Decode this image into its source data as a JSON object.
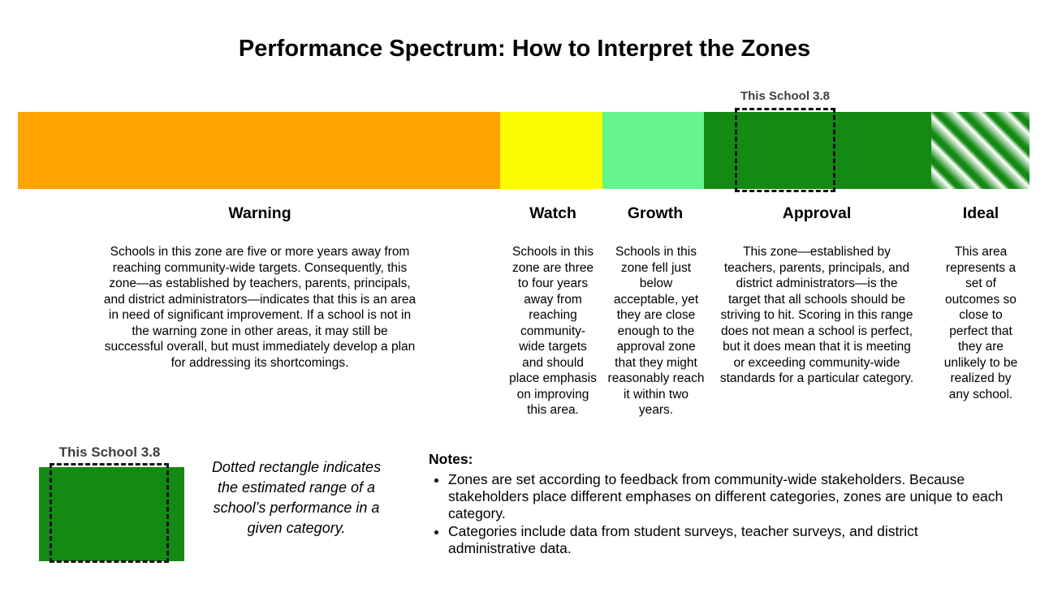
{
  "title": "Performance Spectrum: How to Interpret the Zones",
  "bar_marker": {
    "label": "This School 3.8"
  },
  "zones": [
    {
      "name": "Warning",
      "color": "#FFA400",
      "description": "Schools in this zone are five or more years away from reaching community-wide targets. Consequently, this zone—as established by teachers, parents, principals, and district administrators—indicates that this is an area in need of significant improvement. If a school is not in the warning zone in other areas, it may still be successful overall, but must immediately develop a plan for addressing its shortcomings."
    },
    {
      "name": "Watch",
      "color": "#FCFC00",
      "description": "Schools in this zone are three to four years away from reaching community-wide targets and should place emphasis on improving this area."
    },
    {
      "name": "Growth",
      "color": "#66F48E",
      "description": "Schools in this zone fell just below acceptable, yet they are close enough to the approval zone that they might reasonably reach it within two years."
    },
    {
      "name": "Approval",
      "color": "#148A14",
      "description": "This zone—established by teachers, parents, principals, and district administrators—is the target that all schools should be striving to hit. Scoring in this range does not mean a school is perfect, but it does mean that it is meeting or exceeding community-wide standards for a particular category."
    },
    {
      "name": "Ideal",
      "color": "#148A14",
      "pattern": "diagonal-stripes",
      "description": "This area represents a set of outcomes so close to perfect that they are unlikely to be realized by any school."
    }
  ],
  "legend": {
    "marker_label": "This School 3.8",
    "swatch_color": "#148A14",
    "caption": "Dotted rectangle indicates the estimated range of a school’s performance in a given category."
  },
  "notes": {
    "heading": "Notes:",
    "items": [
      "Zones are set according to feedback from community-wide stakeholders. Because stakeholders place different emphases on different categories, zones are unique to each category.",
      "Categories include data from student surveys, teacher surveys, and district administrative data."
    ]
  }
}
